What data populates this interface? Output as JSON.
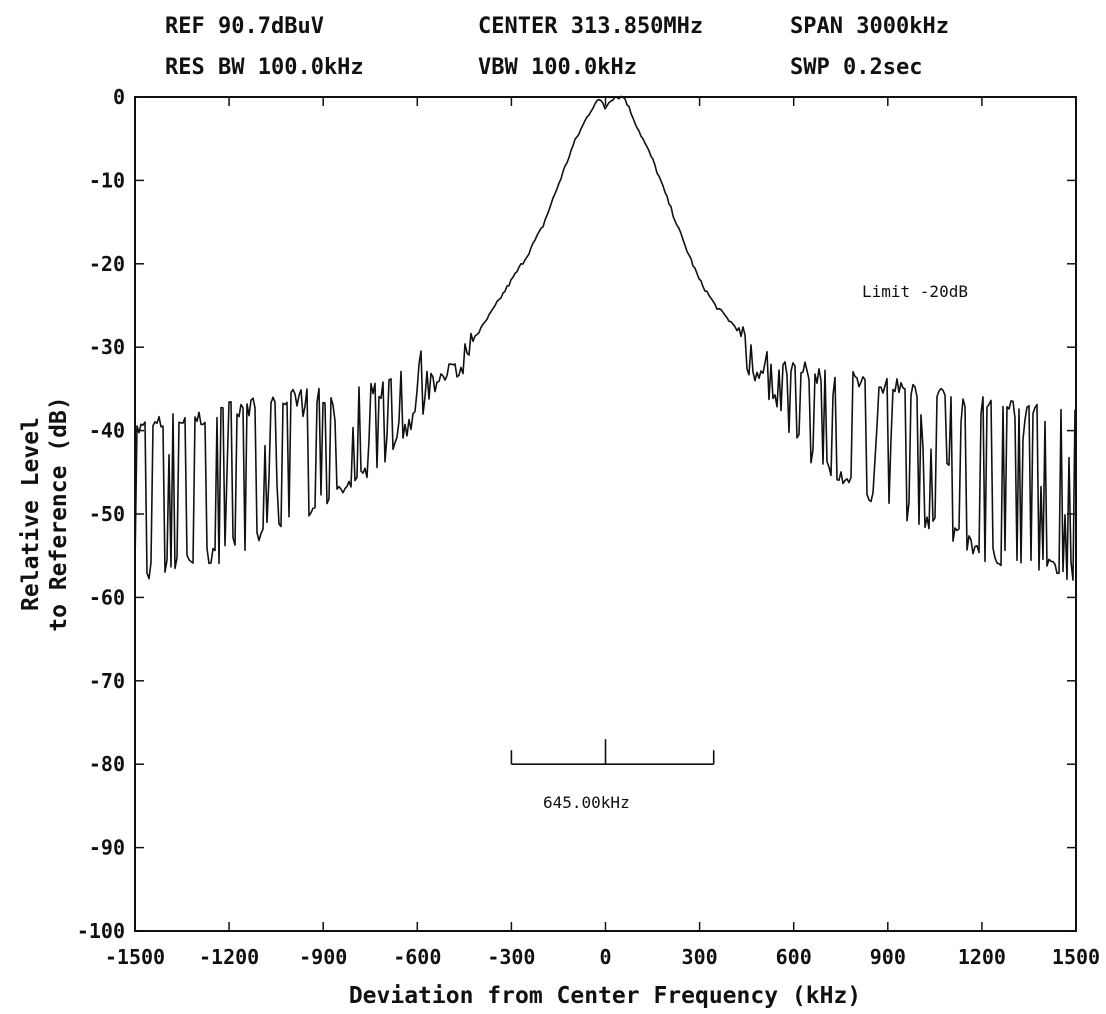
{
  "header": {
    "ref": "REF 90.7dBuV",
    "center": "CENTER 313.850MHz",
    "span": "SPAN 3000kHz",
    "res_bw": "RES BW 100.0kHz",
    "vbw": "VBW 100.0kHz",
    "swp": "SWP 0.2sec"
  },
  "chart_data": {
    "type": "line",
    "title": "",
    "xlabel": "Deviation from Center Frequency (kHz)",
    "ylabel_line1": "Relative Level",
    "ylabel_line2": "to Reference (dB)",
    "xlim": [
      -1500,
      1500
    ],
    "ylim": [
      -100,
      0
    ],
    "xticks": [
      -1500,
      -1200,
      -900,
      -600,
      -300,
      0,
      300,
      600,
      900,
      1200,
      1500
    ],
    "yticks": [
      0,
      -10,
      -20,
      -30,
      -40,
      -50,
      -60,
      -70,
      -80,
      -90,
      -100
    ],
    "grid": false,
    "annotations": {
      "limit_text": "Limit -20dB",
      "bandwidth_text": "645.00kHz",
      "bandwidth_left_khz": -300,
      "bandwidth_right_khz": 345,
      "bandwidth_level_db": -80,
      "marker_x_khz": 0,
      "marker_top_db": -77
    },
    "series": [
      {
        "envelope_x": [
          -1500,
          -1450,
          -1400,
          -1300,
          -1200,
          -1100,
          -1000,
          -900,
          -800,
          -700,
          -600,
          -550,
          -500,
          -450,
          -400,
          -350,
          -300,
          -250,
          -200,
          -150,
          -100,
          -60,
          -30,
          -10,
          0,
          10,
          30,
          60,
          100,
          150,
          200,
          250,
          300,
          350,
          400,
          450,
          500,
          550,
          600,
          700,
          800,
          900,
          1000,
          1100,
          1200,
          1300,
          1400,
          1500
        ],
        "envelope_y": [
          -40,
          -39.5,
          -39,
          -38.5,
          -37.5,
          -37,
          -36,
          -36,
          -35.5,
          -35,
          -31,
          -33,
          -32,
          -30,
          -28,
          -25,
          -22,
          -19,
          -15.5,
          -10.5,
          -5.5,
          -2.5,
          -0.5,
          -0.5,
          -1.5,
          -0.5,
          0,
          0,
          -3.5,
          -7.5,
          -12.5,
          -17.5,
          -22,
          -25,
          -27,
          -29,
          -31,
          -32,
          -32.5,
          -33.5,
          -34,
          -34.5,
          -35,
          -36,
          -37,
          -37.5,
          -38,
          -38.5
        ],
        "floor_x": [
          -1500,
          -1400,
          -1300,
          -1200,
          -1100,
          -1000,
          -900,
          -800,
          -700,
          -600,
          -550,
          -500,
          -450,
          -420,
          420,
          450,
          500,
          550,
          600,
          700,
          800,
          900,
          1000,
          1100,
          1200,
          1300,
          1400,
          1500
        ],
        "floor_y": [
          -57,
          -56.5,
          -55.5,
          -54.5,
          -52.5,
          -50.5,
          -48.5,
          -46.5,
          -43,
          -38,
          -35.5,
          -33,
          -32,
          -31,
          -31,
          -32,
          -34,
          -38,
          -41.5,
          -44.5,
          -46.5,
          -48.5,
          -50.5,
          -52,
          -54.5,
          -55.5,
          -56,
          -57
        ]
      }
    ]
  }
}
